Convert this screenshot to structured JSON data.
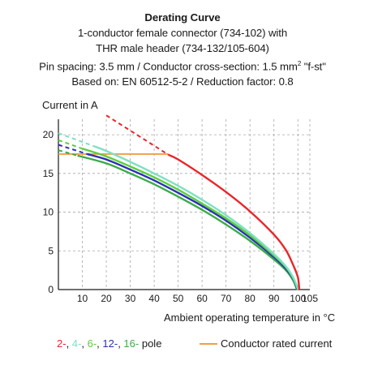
{
  "header": {
    "title": "Derating Curve",
    "line1": "1-conductor female connector (734-102) with",
    "line2": "THR male header (734-132/105-604)",
    "line3_pre": "Pin spacing: 3.5 mm / Conductor cross-section: 1.5 mm",
    "line3_sup": "2",
    "line3_post": " \"f-st\"",
    "line4": "Based on: EN 60512-5-2 / Reduction factor: 0.8"
  },
  "legend": {
    "pole_labels": [
      "2-",
      "4-",
      "6-",
      "12-",
      "16-"
    ],
    "pole_suffix": "pole",
    "rated_label": "Conductor rated current"
  },
  "colors": {
    "p2": "#e8262a",
    "p4": "#7fe0c4",
    "p6": "#5ccf3c",
    "p12": "#2b2fb7",
    "p16": "#3bab4a",
    "rated": "#f29d45"
  },
  "chart_data": {
    "type": "line",
    "xlabel": "Ambient operating temperature in °C",
    "ylabel": "Current in A",
    "xlim": [
      0,
      105
    ],
    "ylim": [
      0,
      22
    ],
    "xticks": [
      10,
      20,
      30,
      40,
      50,
      60,
      70,
      80,
      90,
      100,
      105
    ],
    "yticks": [
      0,
      5,
      10,
      15,
      20
    ],
    "grid": true,
    "series": [
      {
        "name": "2-",
        "color": "#e8262a",
        "dashed": [
          [
            20,
            22.5
          ],
          [
            46,
            17.4
          ]
        ],
        "points": [
          [
            46,
            17.4
          ],
          [
            50,
            16.8
          ],
          [
            60,
            14.8
          ],
          [
            70,
            12.6
          ],
          [
            80,
            10.1
          ],
          [
            90,
            7.1
          ],
          [
            95,
            5.1
          ],
          [
            98,
            3.2
          ],
          [
            100,
            1.6
          ],
          [
            100.6,
            0
          ]
        ]
      },
      {
        "name": "4-",
        "color": "#7fe0c4",
        "dashed": [
          [
            0,
            20.2
          ],
          [
            15,
            18.5
          ]
        ],
        "points": [
          [
            15,
            18.5
          ],
          [
            20,
            17.9
          ],
          [
            30,
            16.5
          ],
          [
            40,
            15.0
          ],
          [
            50,
            13.4
          ],
          [
            60,
            11.6
          ],
          [
            70,
            9.6
          ],
          [
            80,
            7.3
          ],
          [
            90,
            4.6
          ],
          [
            95,
            3.0
          ],
          [
            98,
            1.6
          ],
          [
            100.2,
            0
          ]
        ]
      },
      {
        "name": "6-",
        "color": "#5ccf3c",
        "dashed": [
          [
            0,
            19.3
          ],
          [
            10,
            18.2
          ]
        ],
        "points": [
          [
            10,
            18.2
          ],
          [
            20,
            17.2
          ],
          [
            30,
            15.9
          ],
          [
            40,
            14.5
          ],
          [
            50,
            12.9
          ],
          [
            60,
            11.1
          ],
          [
            70,
            9.2
          ],
          [
            80,
            7.0
          ],
          [
            90,
            4.4
          ],
          [
            95,
            2.9
          ],
          [
            98,
            1.5
          ],
          [
            100,
            0
          ]
        ]
      },
      {
        "name": "12-",
        "color": "#2b2fb7",
        "dashed": [
          [
            0,
            18.7
          ],
          [
            12,
            17.5
          ]
        ],
        "points": [
          [
            12,
            17.5
          ],
          [
            20,
            16.8
          ],
          [
            30,
            15.5
          ],
          [
            40,
            14.1
          ],
          [
            50,
            12.5
          ],
          [
            60,
            10.8
          ],
          [
            70,
            8.9
          ],
          [
            80,
            6.7
          ],
          [
            90,
            4.2
          ],
          [
            95,
            2.7
          ],
          [
            98,
            1.4
          ],
          [
            99.8,
            0
          ]
        ]
      },
      {
        "name": "16-",
        "color": "#3bab4a",
        "dashed": [
          [
            0,
            18.0
          ],
          [
            8,
            17.3
          ]
        ],
        "points": [
          [
            8,
            17.3
          ],
          [
            20,
            16.3
          ],
          [
            30,
            15.0
          ],
          [
            40,
            13.6
          ],
          [
            50,
            12.0
          ],
          [
            60,
            10.3
          ],
          [
            70,
            8.4
          ],
          [
            80,
            6.3
          ],
          [
            90,
            3.9
          ],
          [
            95,
            2.5
          ],
          [
            98,
            1.2
          ],
          [
            99.6,
            0
          ]
        ]
      }
    ],
    "rated_current": {
      "label": "Conductor rated current",
      "value": 17.5,
      "x_end": 46
    }
  }
}
